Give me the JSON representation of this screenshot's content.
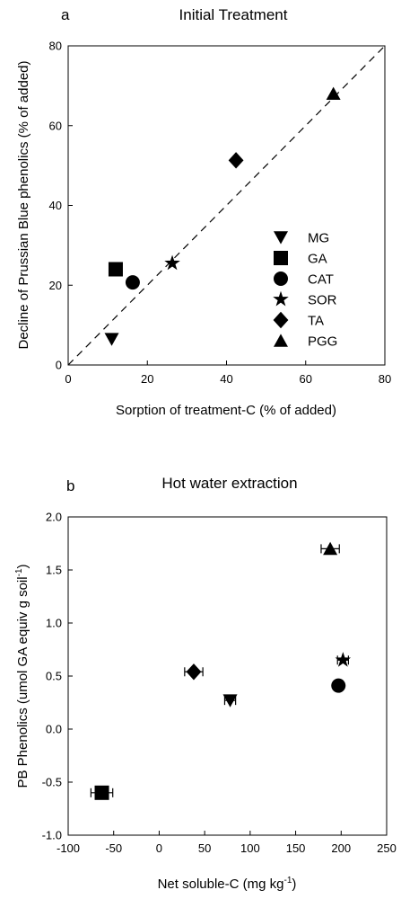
{
  "chart_data": [
    {
      "type": "scatter",
      "panel_label": "a",
      "title": "Initial Treatment",
      "xlabel": "Sorption of treatment-C  (% of added)",
      "ylabel": "Decline of Prussian Blue phenolics (% of added)",
      "xlim": [
        0,
        80
      ],
      "ylim": [
        0,
        80
      ],
      "xticks": [
        0,
        20,
        40,
        60,
        80
      ],
      "yticks": [
        0,
        20,
        40,
        60,
        80
      ],
      "reference_line": {
        "style": "dashed",
        "x": [
          0,
          80
        ],
        "y": [
          0,
          80
        ]
      },
      "legend": {
        "placement": "center-right",
        "entries": [
          {
            "label": "MG",
            "marker": "triangle-down"
          },
          {
            "label": "GA",
            "marker": "square"
          },
          {
            "label": "CAT",
            "marker": "circle"
          },
          {
            "label": "SOR",
            "marker": "star"
          },
          {
            "label": "TA",
            "marker": "diamond"
          },
          {
            "label": "PGG",
            "marker": "triangle-up"
          }
        ]
      },
      "points": [
        {
          "label": "MG",
          "marker": "triangle-down",
          "x": 11,
          "y": 6.5
        },
        {
          "label": "GA",
          "marker": "square",
          "x": 12,
          "y": 24
        },
        {
          "label": "CAT",
          "marker": "circle",
          "x": 16.3,
          "y": 20.7
        },
        {
          "label": "SOR",
          "marker": "star",
          "x": 26.3,
          "y": 25.5
        },
        {
          "label": "TA",
          "marker": "diamond",
          "x": 42.4,
          "y": 51.3
        },
        {
          "label": "PGG",
          "marker": "triangle-up",
          "x": 67,
          "y": 68
        }
      ],
      "grid": false
    },
    {
      "type": "scatter",
      "panel_label": "b",
      "title": "Hot water extraction",
      "xlabel": "Net soluble-C (mg kg",
      "xlabel_sup": "-1",
      "xlabel_end": ")",
      "ylabel": "PB Phenolics (umol GA equiv g soil",
      "ylabel_sup": "-1",
      "ylabel_end": ")",
      "xlim": [
        -100,
        250
      ],
      "ylim": [
        -1.0,
        2.0
      ],
      "xticks": [
        -100,
        -50,
        0,
        50,
        100,
        150,
        200,
        250
      ],
      "yticks": [
        -1.0,
        -0.5,
        0.0,
        0.5,
        1.0,
        1.5,
        2.0
      ],
      "xtick_labels": [
        "-100",
        "-50",
        "0",
        "50",
        "100",
        "150",
        "200",
        "250"
      ],
      "ytick_labels": [
        "-1.0",
        "-0.5",
        "0.0",
        "0.5",
        "1.0",
        "1.5",
        "2.0"
      ],
      "points": [
        {
          "label": "GA",
          "marker": "square",
          "x": -63,
          "y": -0.6,
          "xerr": 12
        },
        {
          "label": "TA",
          "marker": "diamond",
          "x": 38,
          "y": 0.54,
          "xerr": 10
        },
        {
          "label": "MG",
          "marker": "triangle-down",
          "x": 78,
          "y": 0.27,
          "xerr": 6
        },
        {
          "label": "PGG",
          "marker": "triangle-up",
          "x": 188,
          "y": 1.7,
          "xerr": 10
        },
        {
          "label": "SOR",
          "marker": "star",
          "x": 202,
          "y": 0.65,
          "xerr": 6
        },
        {
          "label": "CAT",
          "marker": "circle",
          "x": 197,
          "y": 0.41,
          "xerr": 0
        }
      ],
      "grid": false
    }
  ]
}
